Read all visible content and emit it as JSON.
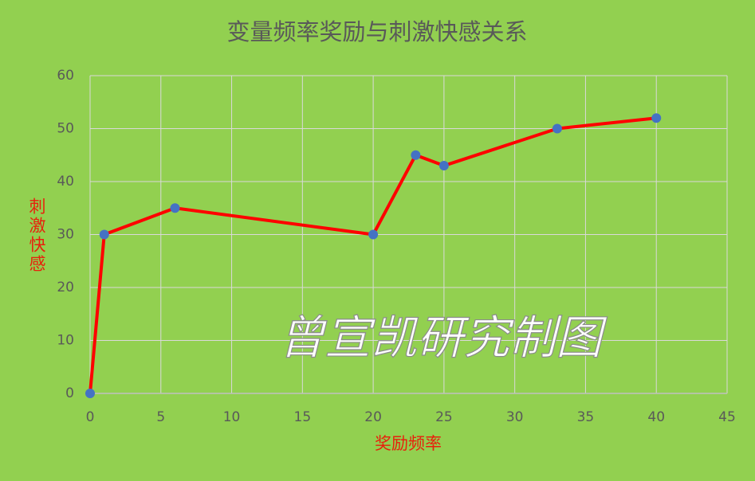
{
  "chart_data": {
    "type": "line",
    "title": "变量频率奖励与刺激快感关系",
    "x_label": "奖励频率",
    "y_label": "刺激快感",
    "annotation": "曾宣凯研究制图",
    "x": [
      0,
      1,
      6,
      20,
      23,
      25,
      33,
      40
    ],
    "series": [
      {
        "color": "#ff0000",
        "marker_color": "#4472c4",
        "values": [
          0,
          30,
          35,
          30,
          45,
          43,
          50,
          52
        ]
      }
    ],
    "xlim": [
      0,
      45
    ],
    "xticks": [
      0,
      5,
      10,
      15,
      20,
      25,
      30,
      35,
      40,
      45
    ],
    "ylim": [
      0,
      60
    ],
    "yticks": [
      0,
      10,
      20,
      30,
      40,
      50,
      60
    ],
    "grid": true
  }
}
